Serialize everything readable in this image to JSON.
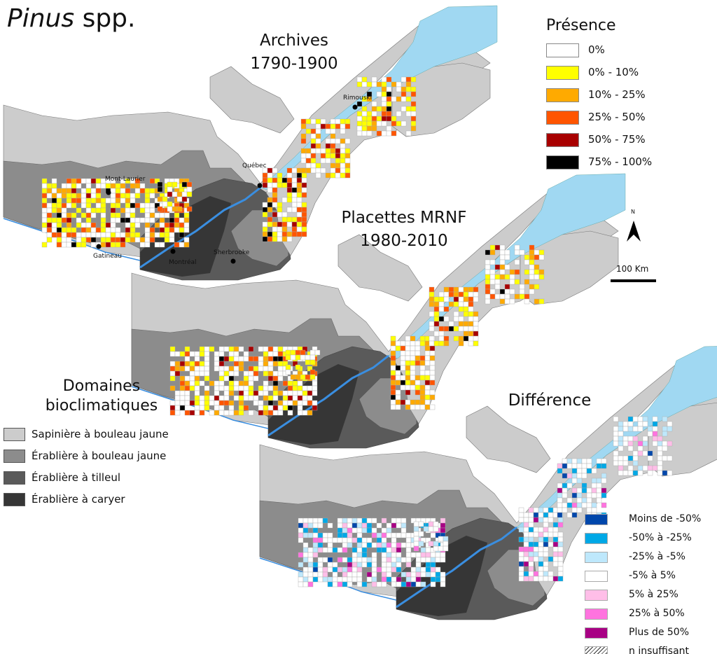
{
  "title": {
    "genus": "Pinus",
    "suffix": "spp."
  },
  "panels": {
    "archives": {
      "line1": "Archives",
      "line2": "1790-1900"
    },
    "placettes": {
      "line1": "Placettes MRNF",
      "line2": "1980-2010"
    },
    "difference": {
      "line1": "Différence"
    }
  },
  "cities": [
    "Mont-Laurier",
    "Québec",
    "Rimouski",
    "Gatineau",
    "Montréal",
    "Sherbrooke"
  ],
  "presence_legend": {
    "title": "Présence",
    "items": [
      {
        "label": "0%",
        "color": "#ffffff"
      },
      {
        "label": "0% - 10%",
        "color": "#ffff00"
      },
      {
        "label": "10% - 25%",
        "color": "#ffaa00"
      },
      {
        "label": "25% - 50%",
        "color": "#ff5500"
      },
      {
        "label": "50% - 75%",
        "color": "#a80000"
      },
      {
        "label": "75% - 100%",
        "color": "#000000"
      }
    ]
  },
  "north_label": "N",
  "scale_label": "100 Km",
  "domains_legend": {
    "title1": "Domaines",
    "title2": "bioclimatiques",
    "items": [
      {
        "label": "Sapinière à bouleau jaune",
        "color": "#cccccc"
      },
      {
        "label": "Érablière à bouleau jaune",
        "color": "#8c8c8c"
      },
      {
        "label": "Érablière à tilleul",
        "color": "#5a5a5a"
      },
      {
        "label": "Érablière à caryer",
        "color": "#363636"
      }
    ]
  },
  "difference_legend": {
    "items": [
      {
        "label": "Moins de  -50%",
        "color": "#0047ab"
      },
      {
        "label": "-50%  à  -25%",
        "color": "#00a8e6"
      },
      {
        "label": "-25%  à  -5%",
        "color": "#bee8fc"
      },
      {
        "label": "-5%  à  5%",
        "color": "#ffffff"
      },
      {
        "label": "5%  à  25%",
        "color": "#ffbee8"
      },
      {
        "label": "25%  à  50%",
        "color": "#ff73df"
      },
      {
        "label": "Plus de  50%",
        "color": "#a80084"
      },
      {
        "label": "n insuffisant",
        "color": "hatch"
      }
    ]
  }
}
